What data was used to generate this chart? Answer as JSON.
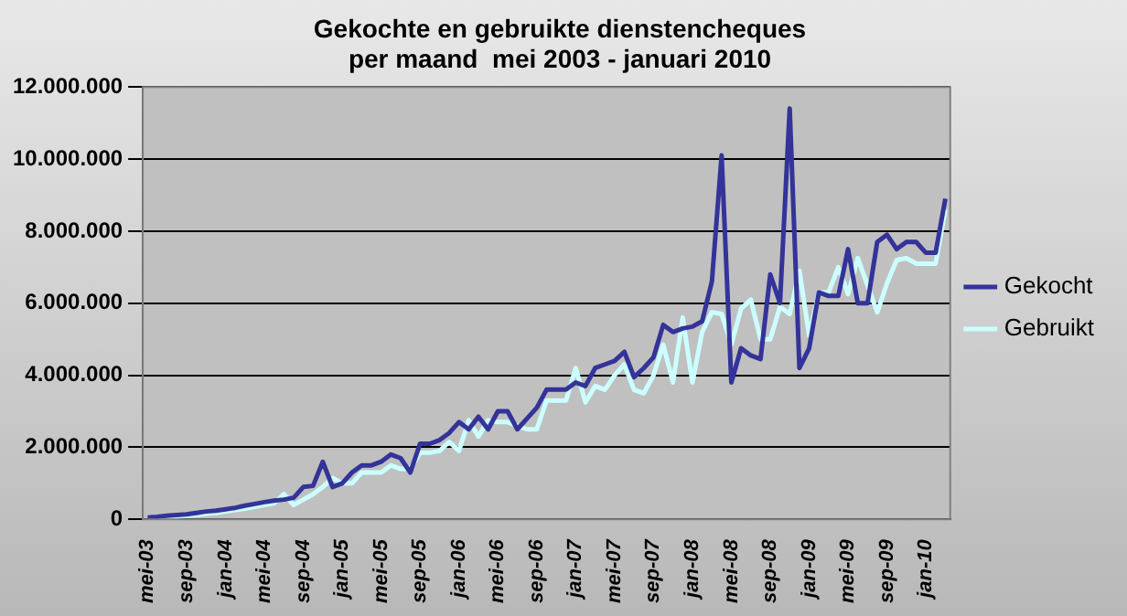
{
  "chart_data": {
    "type": "line",
    "title": "Gekochte en gebruikte dienstencheques\nper maand  mei 2003 - januari 2010",
    "categories": [
      "mei-03",
      null,
      null,
      null,
      "sep-03",
      null,
      null,
      null,
      "jan-04",
      null,
      null,
      null,
      "mei-04",
      null,
      null,
      null,
      "sep-04",
      null,
      null,
      null,
      "jan-05",
      null,
      null,
      null,
      "mei-05",
      null,
      null,
      null,
      "sep-05",
      null,
      null,
      null,
      "jan-06",
      null,
      null,
      null,
      "mei-06",
      null,
      null,
      null,
      "sep-06",
      null,
      null,
      null,
      "jan-07",
      null,
      null,
      null,
      "mei-07",
      null,
      null,
      null,
      "sep-07",
      null,
      null,
      null,
      "jan-08",
      null,
      null,
      null,
      "mei-08",
      null,
      null,
      null,
      "sep-08",
      null,
      null,
      null,
      "jan-09",
      null,
      null,
      null,
      "mei-09",
      null,
      null,
      null,
      "sep-09",
      null,
      null,
      null,
      "jan-10",
      null,
      null
    ],
    "series": [
      {
        "name": "Gekocht",
        "color": "#333399",
        "values": [
          50000,
          70000,
          100000,
          120000,
          140000,
          180000,
          220000,
          240000,
          280000,
          320000,
          380000,
          430000,
          480000,
          520000,
          550000,
          600000,
          900000,
          930000,
          1600000,
          900000,
          1000000,
          1300000,
          1500000,
          1500000,
          1600000,
          1800000,
          1700000,
          1300000,
          2100000,
          2100000,
          2200000,
          2400000,
          2700000,
          2500000,
          2850000,
          2500000,
          3000000,
          3000000,
          2500000,
          2800000,
          3100000,
          3600000,
          3600000,
          3600000,
          3800000,
          3700000,
          4200000,
          4300000,
          4400000,
          4650000,
          3950000,
          4200000,
          4500000,
          5400000,
          5200000,
          5300000,
          5350000,
          5500000,
          6600000,
          10100000,
          3800000,
          4750000,
          4550000,
          4450000,
          6800000,
          6000000,
          11400000,
          4200000,
          4750000,
          6300000,
          6200000,
          6200000,
          7500000,
          6000000,
          6000000,
          7700000,
          7900000,
          7500000,
          7700000,
          7700000,
          7400000,
          7400000,
          8900000
        ]
      },
      {
        "name": "Gebruikt",
        "color": "#ccffff",
        "values": [
          null,
          40000,
          60000,
          80000,
          100000,
          120000,
          150000,
          180000,
          220000,
          260000,
          300000,
          350000,
          400000,
          450000,
          700000,
          400000,
          550000,
          700000,
          900000,
          1150000,
          1000000,
          1000000,
          1300000,
          1300000,
          1300000,
          1500000,
          1400000,
          1400000,
          1850000,
          1850000,
          1900000,
          2150000,
          1900000,
          2750000,
          2300000,
          2750000,
          2700000,
          2700000,
          2600000,
          2500000,
          2500000,
          3300000,
          3300000,
          3300000,
          4200000,
          3250000,
          3700000,
          3600000,
          4000000,
          4300000,
          3600000,
          3500000,
          4000000,
          4850000,
          3800000,
          5600000,
          3800000,
          5200000,
          5750000,
          5700000,
          4850000,
          5850000,
          6100000,
          5000000,
          5000000,
          5900000,
          5700000,
          6900000,
          5100000,
          6300000,
          6300000,
          7000000,
          6250000,
          7250000,
          6500000,
          5750000,
          6550000,
          7200000,
          7250000,
          7100000,
          7100000,
          7100000,
          8600000
        ]
      }
    ],
    "ylim": [
      0,
      12000000
    ],
    "yticks": [
      {
        "value": 0,
        "label": "0"
      },
      {
        "value": 2000000,
        "label": "2.000.000"
      },
      {
        "value": 4000000,
        "label": "4.000.000"
      },
      {
        "value": 6000000,
        "label": "6.000.000"
      },
      {
        "value": 8000000,
        "label": "8.000.000"
      },
      {
        "value": 10000000,
        "label": "10.000.000"
      },
      {
        "value": 12000000,
        "label": "12.000.000"
      }
    ],
    "grid": "y",
    "legend": "right",
    "marker": "none",
    "line_style": "solid"
  }
}
